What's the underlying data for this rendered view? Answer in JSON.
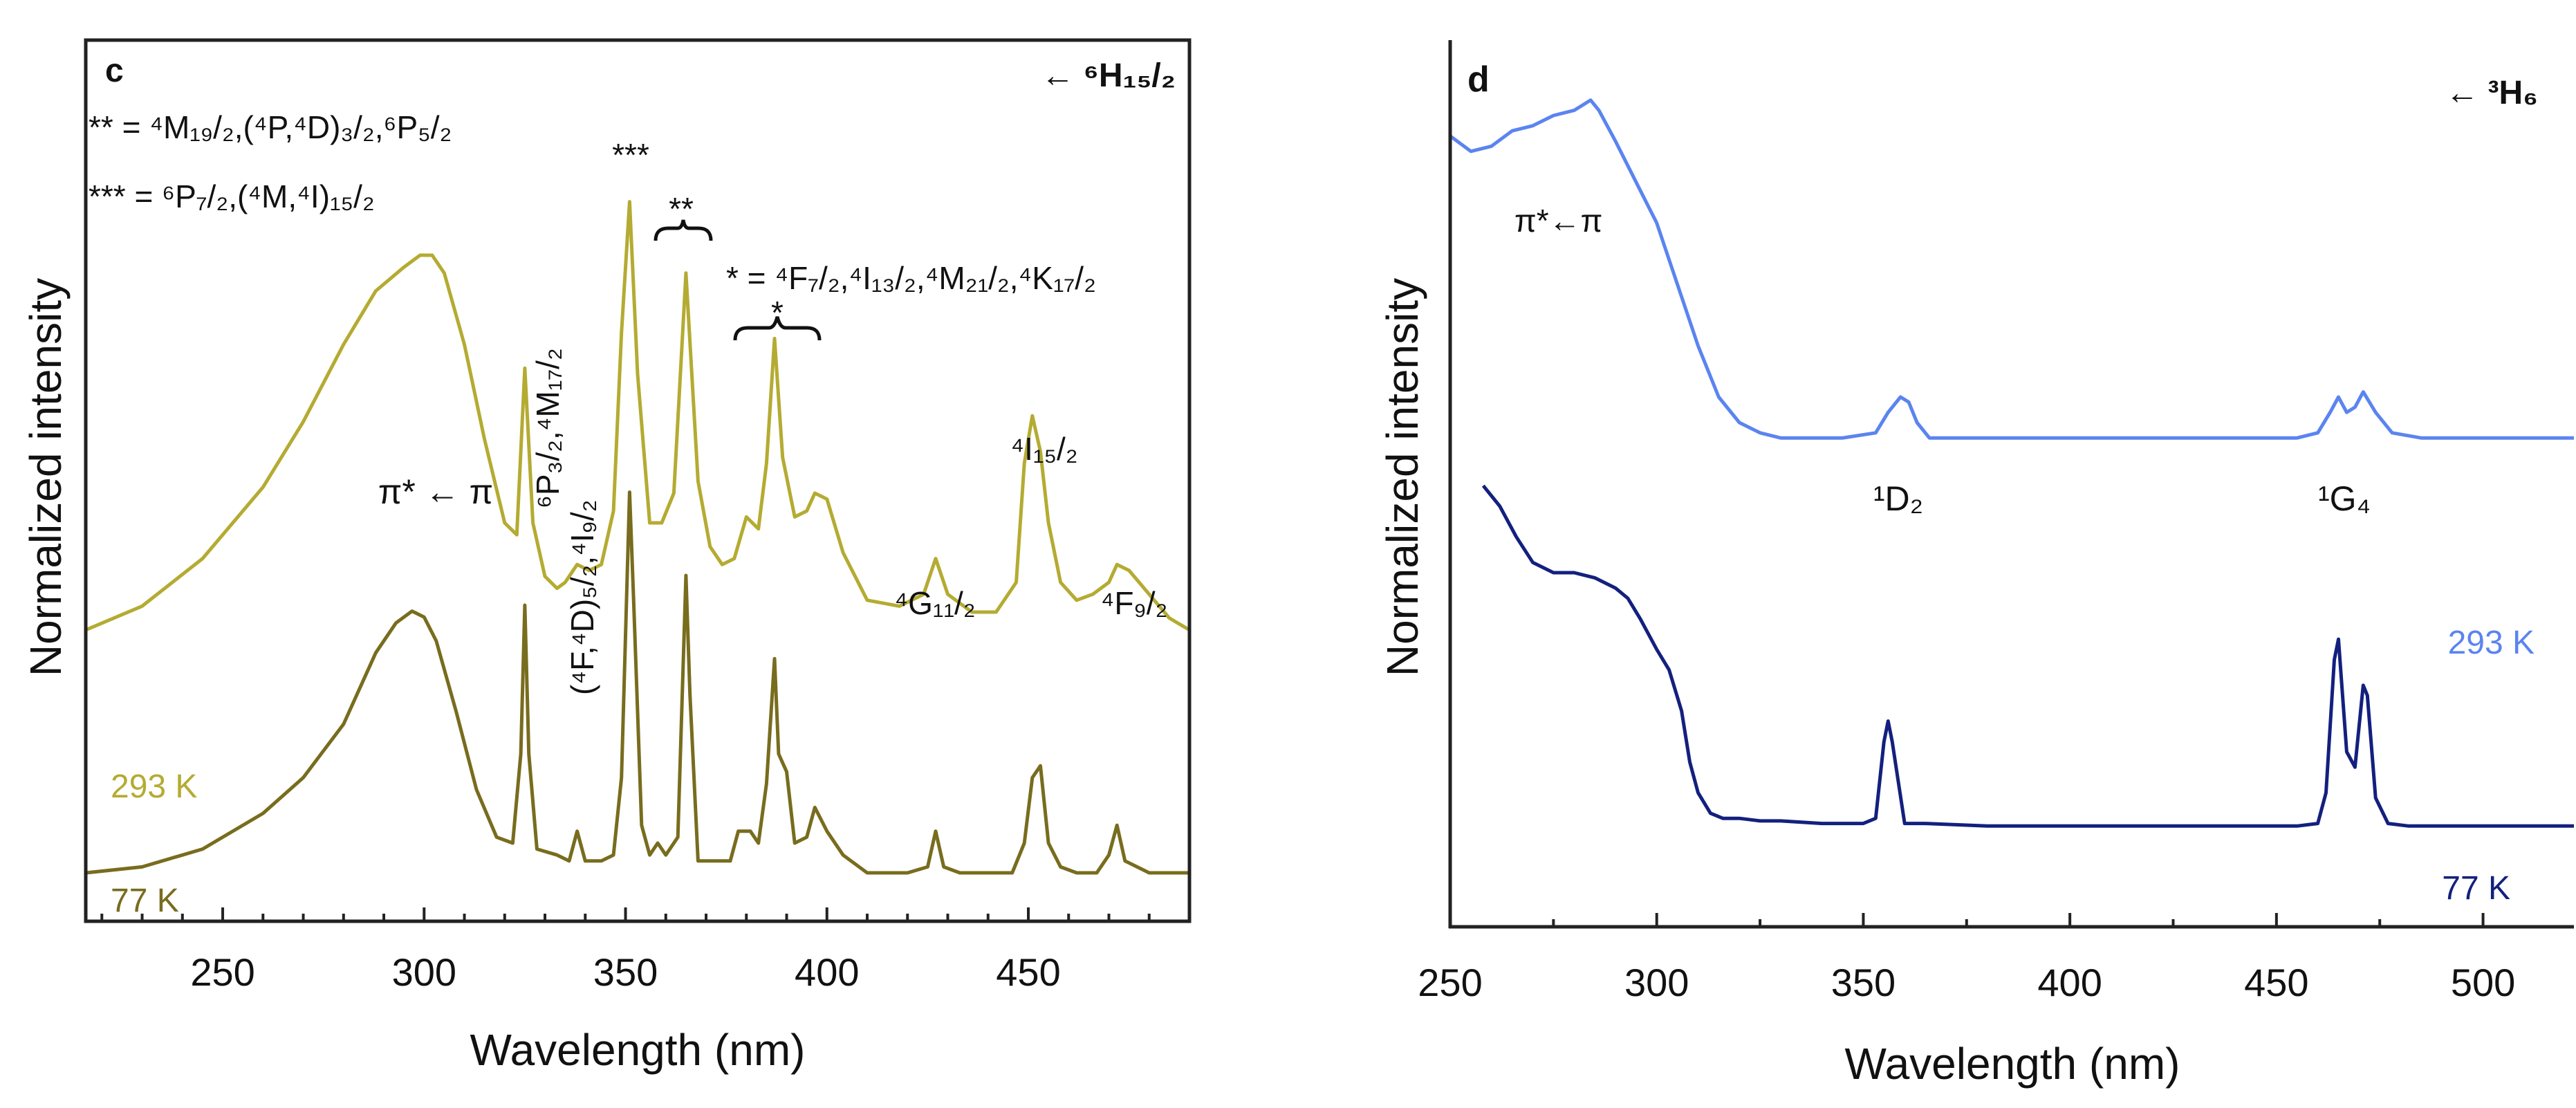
{
  "chart_data": [
    {
      "panel": "c",
      "type": "line",
      "title": "← ⁶H₁₅/₂",
      "xlabel": "Wavelength (nm)",
      "ylabel": "Normalized intensity",
      "xlim": [
        216,
        490
      ],
      "ylim": [
        0,
        100
      ],
      "x_ticks": [
        250,
        300,
        350,
        400,
        450
      ],
      "x_tick_labels": [
        "250",
        "300",
        "350",
        "400",
        "450"
      ],
      "legend_notes": [
        "** = ⁴M₁₉/₂,(⁴P,⁴D)₃/₂,⁶P₅/₂",
        "*** = ⁶P₇/₂,(⁴M,⁴I)₁₅/₂"
      ],
      "annotations": [
        {
          "text": "π* ← π",
          "x": 290,
          "y": 53
        },
        {
          "text": "***",
          "x": 351,
          "y": 90
        },
        {
          "text": "**",
          "x": 363,
          "y": 83
        },
        {
          "text": "* = ⁴F₇/₂,⁴I₁₃/₂,⁴M₂₁/₂,⁴K₁₇/₂",
          "x": 445,
          "y": 74
        },
        {
          "text": "*",
          "x": 387,
          "y": 69
        },
        {
          "text": "⁶P₃/₂,⁴M₁₇/₂",
          "x": 331,
          "y": 51,
          "rotate": -90
        },
        {
          "text": "(⁴F,⁴D)₅/₂,⁴I₉/₂",
          "x": 348,
          "y": 27,
          "rotate": -90
        },
        {
          "text": "⁴G₁₁/₂",
          "x": 426,
          "y": 34
        },
        {
          "text": "⁴I₁₅/₂",
          "x": 453,
          "y": 56
        },
        {
          "text": "⁴F₉/₂",
          "x": 477,
          "y": 38
        }
      ],
      "series": [
        {
          "name": "293 K",
          "color": "#b4ab32",
          "label_position": "left",
          "x": [
            216,
            230,
            245,
            260,
            270,
            280,
            288,
            295,
            299,
            302,
            305,
            310,
            315,
            320,
            323,
            325,
            327,
            330,
            333,
            335,
            338,
            341,
            344,
            347,
            349,
            351,
            353,
            356,
            359,
            362,
            365,
            368,
            371,
            374,
            377,
            380,
            383,
            385,
            387,
            389,
            392,
            395,
            397,
            400,
            404,
            410,
            418,
            424,
            427,
            430,
            436,
            442,
            447,
            449,
            451,
            453,
            455,
            458,
            462,
            466,
            470,
            472,
            475,
            480,
            485,
            490
          ],
          "y": [
            22,
            26,
            34,
            46,
            57,
            70,
            79,
            83,
            85,
            85,
            82,
            70,
            54,
            40,
            38,
            66,
            40,
            31,
            29,
            30,
            33,
            32,
            33,
            42,
            72,
            94,
            65,
            40,
            40,
            45,
            82,
            47,
            36,
            33,
            34,
            41,
            39,
            50,
            71,
            51,
            41,
            42,
            45,
            44,
            35,
            27,
            26,
            28,
            34,
            28,
            25,
            25,
            30,
            50,
            58,
            52,
            40,
            30,
            27,
            28,
            30,
            33,
            32,
            28,
            24,
            22
          ]
        },
        {
          "name": "77 K",
          "color": "#786c1e",
          "label_position": "left",
          "x": [
            216,
            230,
            245,
            260,
            270,
            280,
            288,
            293,
            297,
            300,
            303,
            308,
            313,
            318,
            322,
            324,
            325,
            326,
            328,
            333,
            336,
            338,
            340,
            344,
            347,
            349,
            351,
            352,
            354,
            356,
            358,
            360,
            363,
            365,
            366,
            368,
            372,
            376,
            378,
            381,
            383,
            385,
            387,
            388,
            390,
            392,
            395,
            397,
            400,
            404,
            410,
            420,
            425,
            427,
            429,
            433,
            440,
            446,
            449,
            451,
            453,
            455,
            458,
            462,
            467,
            470,
            472,
            474,
            477,
            480,
            485,
            490
          ],
          "y": [
            0,
            1,
            4,
            10,
            16,
            25,
            37,
            42,
            44,
            43,
            39,
            27,
            14,
            6,
            5,
            20,
            45,
            20,
            4,
            3,
            2,
            7,
            2,
            2,
            3,
            16,
            64,
            46,
            8,
            3,
            5,
            3,
            6,
            50,
            30,
            2,
            2,
            2,
            7,
            7,
            5,
            15,
            36,
            20,
            17,
            5,
            6,
            11,
            7,
            3,
            0,
            0,
            1,
            7,
            1,
            0,
            0,
            0,
            5,
            16,
            18,
            5,
            1,
            0,
            0,
            3,
            8,
            2,
            1,
            0,
            0,
            0
          ]
        }
      ]
    },
    {
      "panel": "d",
      "type": "line",
      "title": "← ³H₆",
      "xlabel": "Wavelength (nm)",
      "ylabel": "Normalized intensity",
      "xlim": [
        250,
        522
      ],
      "ylim": [
        0,
        100
      ],
      "x_ticks": [
        250,
        300,
        350,
        400,
        450,
        500
      ],
      "x_tick_labels": [
        "250",
        "300",
        "350",
        "400",
        "450",
        "500"
      ],
      "annotations": [
        {
          "text": "π*←π",
          "x": 266,
          "y": 81
        },
        {
          "text": "¹D₂",
          "x": 356,
          "y": 52
        },
        {
          "text": "¹G₄",
          "x": 467,
          "y": 52
        }
      ],
      "series": [
        {
          "name": "293 K",
          "color": "#5b84f0",
          "label_position": "right",
          "x": [
            250,
            255,
            260,
            265,
            270,
            275,
            280,
            284,
            286,
            290,
            295,
            300,
            305,
            310,
            315,
            320,
            325,
            330,
            335,
            345,
            353,
            356,
            359,
            361,
            363,
            366,
            370,
            380,
            400,
            420,
            440,
            455,
            460,
            463,
            465,
            467,
            469,
            471,
            474,
            478,
            485,
            500,
            522
          ],
          "y": [
            91,
            88,
            89,
            92,
            93,
            95,
            96,
            98,
            96,
            90,
            82,
            74,
            62,
            50,
            40,
            35,
            33,
            32,
            32,
            32,
            33,
            37,
            40,
            39,
            35,
            32,
            32,
            32,
            32,
            32,
            32,
            32,
            33,
            37,
            40,
            37,
            38,
            41,
            37,
            33,
            32,
            32,
            32
          ]
        },
        {
          "name": "77 K",
          "color": "#14207e",
          "label_position": "right",
          "x": [
            258,
            262,
            266,
            270,
            275,
            280,
            285,
            290,
            293,
            296,
            300,
            303,
            306,
            308,
            310,
            313,
            316,
            320,
            325,
            330,
            340,
            350,
            353,
            355,
            356,
            357,
            360,
            365,
            380,
            400,
            420,
            440,
            455,
            460,
            462,
            464,
            465,
            467,
            469,
            471,
            472,
            474,
            477,
            482,
            500,
            522
          ],
          "y": [
            72,
            68,
            62,
            57,
            55,
            55,
            54,
            52,
            50,
            46,
            40,
            36,
            28,
            18,
            12,
            8,
            7,
            7,
            6.5,
            6.5,
            6,
            6,
            7,
            22,
            26,
            22,
            6,
            6,
            5.5,
            5.5,
            5.5,
            5.5,
            5.5,
            6,
            12,
            38,
            42,
            20,
            17,
            33,
            31,
            11,
            6,
            5.5,
            5.5,
            5.5
          ]
        }
      ]
    }
  ]
}
